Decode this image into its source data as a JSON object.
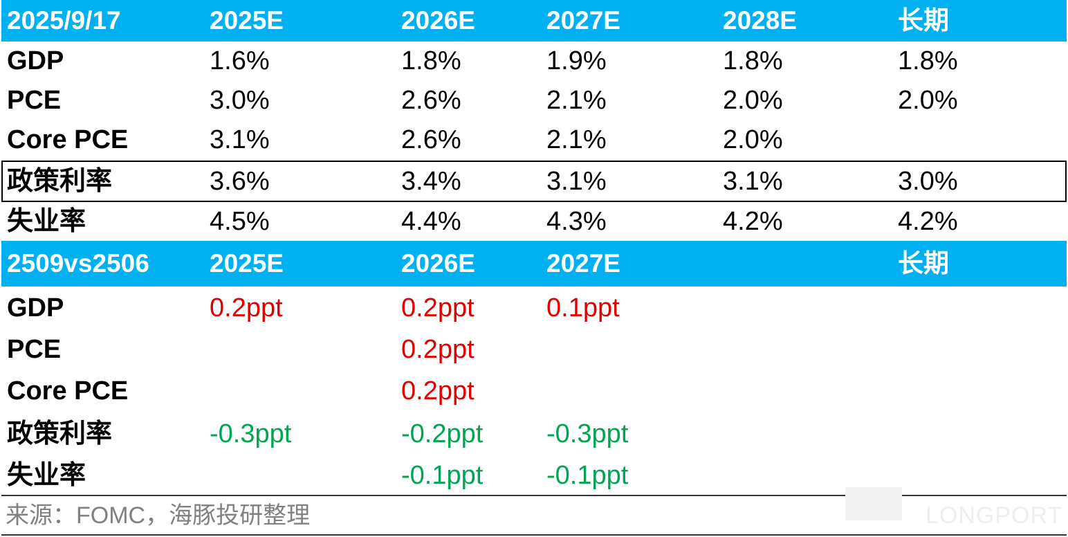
{
  "table1": {
    "header": [
      "2025/9/17",
      "2025E",
      "2026E",
      "2027E",
      "2028E",
      "长期"
    ],
    "rows": [
      [
        "GDP",
        "1.6%",
        "1.8%",
        "1.9%",
        "1.8%",
        "1.8%"
      ],
      [
        "PCE",
        "3.0%",
        "2.6%",
        "2.1%",
        "2.0%",
        "2.0%"
      ],
      [
        "Core PCE",
        "3.1%",
        "2.6%",
        "2.1%",
        "2.0%",
        null
      ],
      [
        "政策利率",
        "3.6%",
        "3.4%",
        "3.1%",
        "3.1%",
        "3.0%"
      ],
      [
        "失业率",
        "4.5%",
        "4.4%",
        "4.3%",
        "4.2%",
        "4.2%"
      ]
    ]
  },
  "table2": {
    "header": [
      "2509vs2506",
      "2025E",
      "2026E",
      "2027E",
      null,
      "长期"
    ],
    "rows": [
      {
        "cells": [
          "GDP",
          "0.2ppt",
          "0.2ppt",
          "0.1ppt",
          null,
          null
        ],
        "color": "#e00000"
      },
      {
        "cells": [
          "PCE",
          null,
          "0.2ppt",
          null,
          null,
          null
        ],
        "color": "#e00000"
      },
      {
        "cells": [
          "Core PCE",
          null,
          "0.2ppt",
          null,
          null,
          null
        ],
        "color": "#e00000"
      },
      {
        "cells": [
          "政策利率",
          "-0.3ppt",
          "-0.2ppt",
          "-0.3ppt",
          null,
          null
        ],
        "color": "#00a550"
      },
      {
        "cells": [
          "失业率",
          null,
          "-0.1ppt",
          "-0.1ppt",
          null,
          null
        ],
        "color": "#00a550"
      }
    ]
  },
  "source": "来源：FOMC，海豚投研整理",
  "watermark": "LONGPORT"
}
